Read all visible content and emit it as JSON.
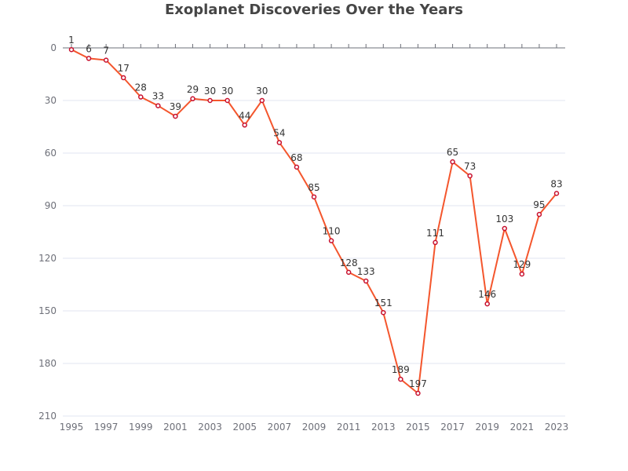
{
  "chart_data": {
    "type": "line",
    "title": "Exoplanet Discoveries Over the Years",
    "xlabel": "",
    "ylabel": "",
    "y_inverted": true,
    "ylim": [
      0,
      210
    ],
    "y_ticks": [
      0,
      30,
      60,
      90,
      120,
      150,
      180,
      210
    ],
    "x_tick_labels": [
      "1995",
      "1997",
      "1999",
      "2001",
      "2003",
      "2005",
      "2007",
      "2009",
      "2011",
      "2013",
      "2015",
      "2017",
      "2019",
      "2021",
      "2023"
    ],
    "grid": true,
    "x": [
      1995,
      1996,
      1997,
      1998,
      1999,
      2000,
      2001,
      2002,
      2003,
      2004,
      2005,
      2006,
      2007,
      2008,
      2009,
      2010,
      2011,
      2012,
      2013,
      2014,
      2015,
      2016,
      2017,
      2018,
      2019,
      2020,
      2021,
      2022,
      2023
    ],
    "series": [
      {
        "values": [
          1,
          6,
          7,
          17,
          28,
          33,
          39,
          29,
          30,
          30,
          44,
          30,
          54,
          68,
          85,
          110,
          128,
          133,
          151,
          189,
          197,
          111,
          65,
          73,
          146,
          103,
          129,
          95,
          83
        ],
        "line_color": "#f4562d",
        "marker_color": "#c8102e"
      }
    ]
  }
}
